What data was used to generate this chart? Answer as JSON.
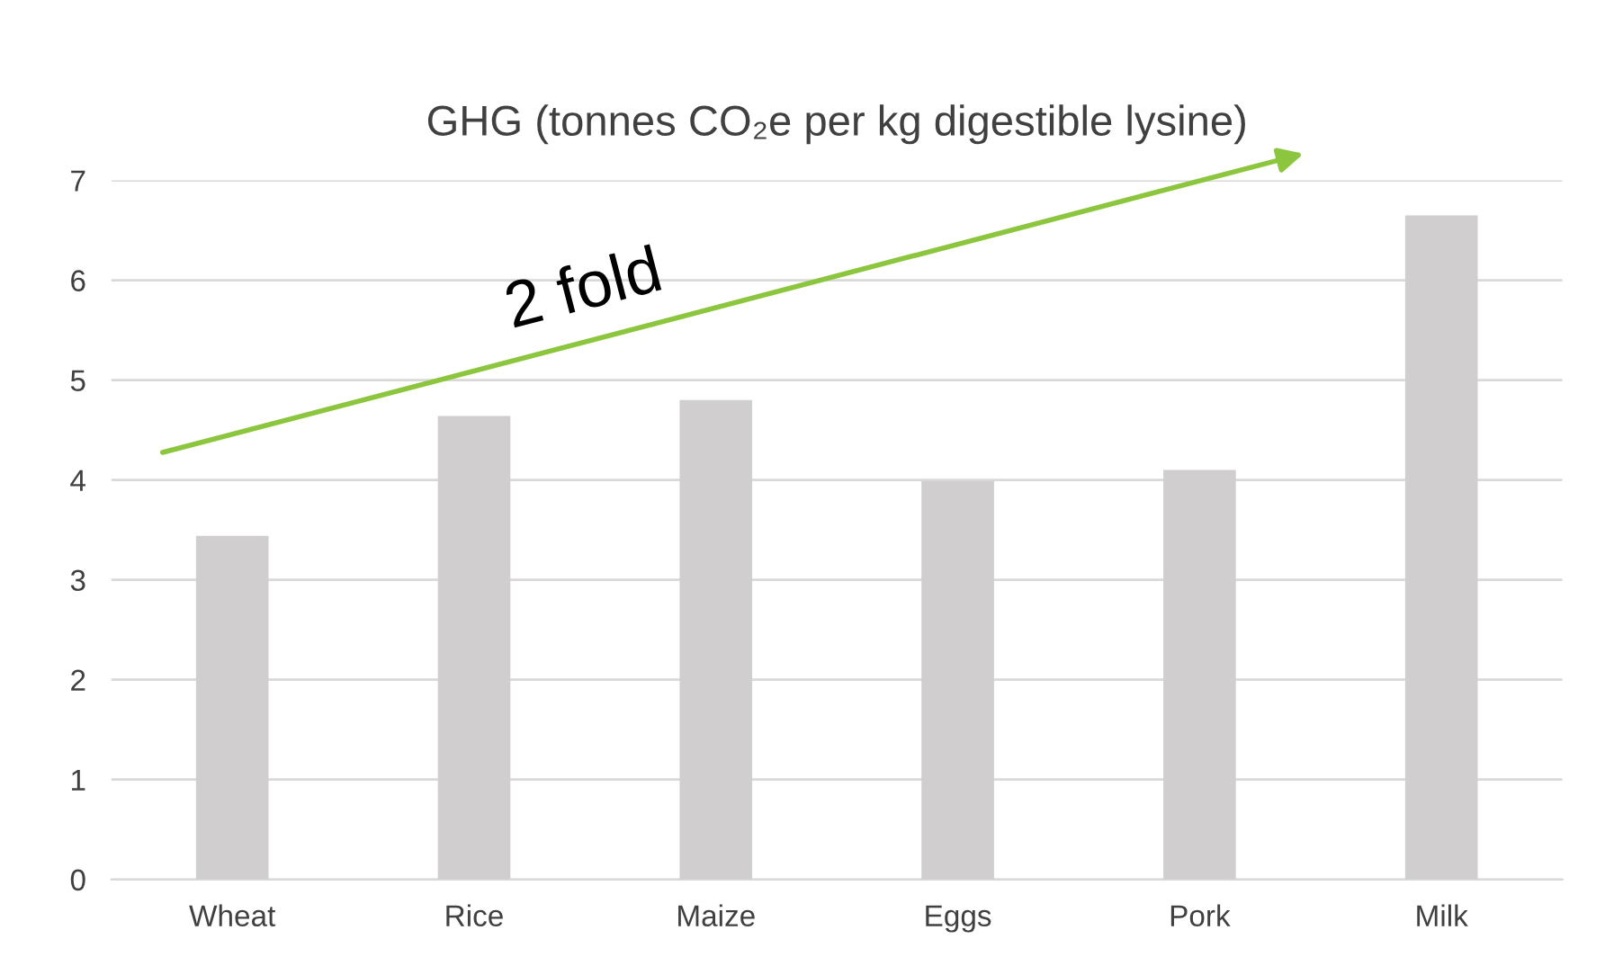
{
  "chart_data": {
    "type": "bar",
    "title": "GHG (tonnes CO₂e per kg digestible lysine)",
    "categories": [
      "Wheat",
      "Rice",
      "Maize",
      "Eggs",
      "Pork",
      "Milk"
    ],
    "values": [
      3.44,
      4.64,
      4.8,
      3.99,
      4.1,
      6.65
    ],
    "color": "#d0cece",
    "ylim": [
      0,
      7
    ],
    "yticks": [
      0,
      1,
      2,
      3,
      4,
      5,
      6,
      7
    ],
    "grid": "y",
    "annotations": [
      "2 fold"
    ]
  }
}
